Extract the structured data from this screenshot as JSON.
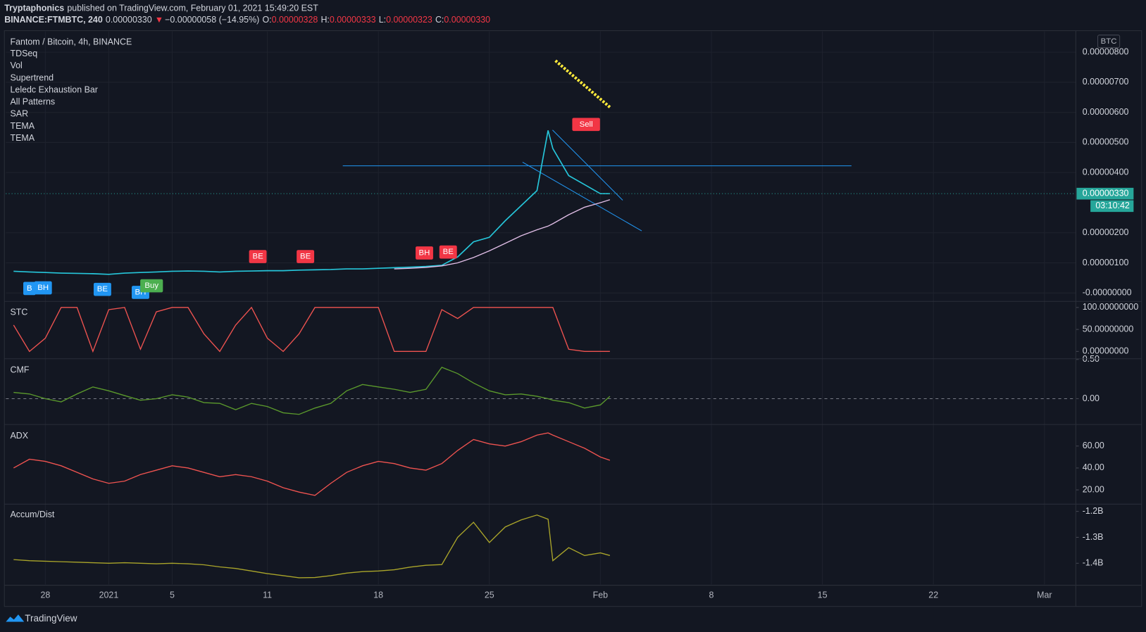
{
  "header": {
    "author": "Tryptaphonics",
    "published": "published on TradingView.com, February 01, 2021 15:49:20 EST",
    "symbol": "BINANCE:FTMBTC, 240",
    "last": "0.00000330",
    "arrow": "▼",
    "change": "−0.00000058 (−14.95%)",
    "ohlc": [
      {
        "label": "O:",
        "value": "0.00000328"
      },
      {
        "label": "H:",
        "value": "0.00000333"
      },
      {
        "label": "L:",
        "value": "0.00000323"
      },
      {
        "label": "C:",
        "value": "0.00000330"
      }
    ]
  },
  "footer": {
    "brand": "TradingView"
  },
  "chart_data": [
    {
      "type": "line",
      "title": "Fantom / Bitcoin, 4h, BINANCE",
      "indicators": [
        "TDSeq",
        "Vol",
        "Supertrend",
        "Leledc Exhaustion Bar",
        "All Patterns",
        "SAR",
        "TEMA",
        "TEMA"
      ],
      "currency": "BTC",
      "grid": true,
      "ylim": [
        -2.67e-07,
        8.69e-06
      ],
      "yticks": [
        {
          "value": 8e-06,
          "label": "0.00000800"
        },
        {
          "value": 7e-06,
          "label": "0.00000700"
        },
        {
          "value": 6e-06,
          "label": "0.00000600"
        },
        {
          "value": 5e-06,
          "label": "0.00000500"
        },
        {
          "value": 4e-06,
          "label": "0.00000400"
        },
        {
          "value": 2e-06,
          "label": "0.00000200"
        },
        {
          "value": 1e-06,
          "label": "0.00000100"
        },
        {
          "value": 0,
          "label": "-0.00000000"
        }
      ],
      "last_price": {
        "value": 3.3e-06,
        "label": "0.00000330"
      },
      "countdown": "03:10:42",
      "x": [
        -2,
        -1,
        0,
        1,
        2,
        3,
        4,
        5,
        6,
        7,
        8,
        9,
        10,
        11,
        12,
        13,
        14,
        15,
        16,
        17,
        18,
        19,
        20,
        21,
        22,
        23,
        24,
        25,
        26,
        27,
        28,
        29,
        30,
        31,
        31.7,
        32,
        33,
        34,
        35,
        35.6
      ],
      "series": [
        {
          "color": "#26c6da",
          "values": [
            7.2e-07,
            7e-07,
            6.8e-07,
            6.6e-07,
            6.5e-07,
            6.4e-07,
            6.2e-07,
            6.6e-07,
            6.8e-07,
            7e-07,
            7.2e-07,
            7.3e-07,
            7.2e-07,
            7e-07,
            7.2e-07,
            7.3e-07,
            7.4e-07,
            7.4e-07,
            7.6e-07,
            7.7e-07,
            7.8e-07,
            8e-07,
            8e-07,
            8.2e-07,
            8.4e-07,
            8.6e-07,
            8.8e-07,
            9.2e-07,
            1.2e-06,
            1.7e-06,
            1.85e-06,
            2.4e-06,
            2.9e-06,
            3.4e-06,
            5.4e-06,
            4.8e-06,
            3.9e-06,
            3.6e-06,
            3.3e-06,
            3.3e-06
          ]
        },
        {
          "color": "#e1bee7",
          "values": [
            null,
            null,
            null,
            null,
            null,
            null,
            null,
            null,
            null,
            null,
            null,
            null,
            null,
            null,
            null,
            null,
            null,
            null,
            null,
            null,
            null,
            null,
            null,
            null,
            8e-07,
            8.2e-07,
            8.5e-07,
            9e-07,
            1e-06,
            1.18e-06,
            1.4e-06,
            1.65e-06,
            1.9e-06,
            2.1e-06,
            2.22e-06,
            2.3e-06,
            2.6e-06,
            2.85e-06,
            3e-06,
            3.1e-06
          ]
        }
      ],
      "markers": [
        {
          "text": "B",
          "x": -1,
          "y": 1.5e-07,
          "color": "#2196f3"
        },
        {
          "text": "BH",
          "x": -0.14,
          "y": 1.7e-07,
          "color": "#2196f3"
        },
        {
          "text": "BE",
          "x": 3.6,
          "y": 1.2e-07,
          "color": "#2196f3"
        },
        {
          "text": "BH",
          "x": 6,
          "y": 2e-08,
          "color": "#2196f3"
        },
        {
          "text": "Buy",
          "x": 6.7,
          "y": 2.4e-07,
          "color": "#4caf50"
        },
        {
          "text": "BE",
          "x": 13.4,
          "y": 1.21e-06,
          "color": "#f23645"
        },
        {
          "text": "BE",
          "x": 16.4,
          "y": 1.21e-06,
          "color": "#f23645"
        },
        {
          "text": "BH",
          "x": 23.9,
          "y": 1.33e-06,
          "color": "#f23645"
        },
        {
          "text": "BE",
          "x": 25.4,
          "y": 1.36e-06,
          "color": "#f23645"
        },
        {
          "text": "Sell",
          "x": 34.1,
          "y": 5.6e-06,
          "color": "#f23645"
        }
      ]
    },
    {
      "type": "line",
      "title": "STC",
      "ylim": [
        -15,
        113
      ],
      "yticks": [
        {
          "value": 100,
          "label": "100.00000000"
        },
        {
          "value": 50,
          "label": "50.00000000"
        },
        {
          "value": 0,
          "label": "0.00000000"
        }
      ],
      "x": [
        -2,
        -1,
        0,
        1,
        2,
        3,
        4,
        5,
        6,
        7,
        8,
        9,
        10,
        11,
        12,
        13,
        14,
        15,
        16,
        17,
        18,
        19,
        20,
        21,
        22,
        23,
        24,
        25,
        26,
        27,
        28,
        29,
        30,
        31,
        31.7,
        32,
        33,
        34,
        35,
        35.6
      ],
      "series": [
        {
          "color": "#ef5350",
          "values": [
            60,
            0,
            30,
            100,
            100,
            0,
            95,
            100,
            5,
            90,
            100,
            100,
            40,
            0,
            60,
            100,
            30,
            0,
            40,
            100,
            100,
            100,
            100,
            100,
            0,
            0,
            0,
            95,
            75,
            100,
            100,
            100,
            100,
            100,
            100,
            100,
            5,
            0,
            0,
            0
          ]
        }
      ]
    },
    {
      "type": "line",
      "title": "CMF",
      "zero_line": true,
      "ylim": [
        -0.32,
        0.5
      ],
      "yticks": [
        {
          "value": 0.5,
          "label": "0.50"
        },
        {
          "value": 0,
          "label": "0.00"
        }
      ],
      "x": [
        -2,
        -1,
        0,
        1,
        2,
        3,
        4,
        5,
        6,
        7,
        8,
        9,
        10,
        11,
        12,
        13,
        14,
        15,
        16,
        17,
        18,
        19,
        20,
        21,
        22,
        23,
        24,
        25,
        26,
        27,
        28,
        29,
        30,
        31,
        31.7,
        32,
        33,
        34,
        35,
        35.6
      ],
      "series": [
        {
          "color": "#5b9a2c",
          "values": [
            0.08,
            0.06,
            0,
            -0.04,
            0.06,
            0.15,
            0.1,
            0.04,
            -0.02,
            0,
            0.05,
            0.02,
            -0.05,
            -0.06,
            -0.14,
            -0.06,
            -0.1,
            -0.18,
            -0.2,
            -0.12,
            -0.06,
            0.1,
            0.18,
            0.15,
            0.12,
            0.08,
            0.12,
            0.4,
            0.32,
            0.2,
            0.1,
            0.05,
            0.06,
            0.03,
            0,
            -0.02,
            -0.05,
            -0.12,
            -0.08,
            0.03
          ]
        }
      ]
    },
    {
      "type": "line",
      "title": "ADX",
      "ylim": [
        7,
        79
      ],
      "yticks": [
        {
          "value": 60,
          "label": "60.00"
        },
        {
          "value": 40,
          "label": "40.00"
        },
        {
          "value": 20,
          "label": "20.00"
        }
      ],
      "x": [
        -2,
        -1,
        0,
        1,
        2,
        3,
        4,
        5,
        6,
        7,
        8,
        9,
        10,
        11,
        12,
        13,
        14,
        15,
        16,
        17,
        18,
        19,
        20,
        21,
        22,
        23,
        24,
        25,
        26,
        27,
        28,
        29,
        30,
        31,
        31.7,
        32,
        33,
        34,
        35,
        35.6
      ],
      "series": [
        {
          "color": "#ef5350",
          "values": [
            40,
            48,
            46,
            42,
            36,
            30,
            26,
            28,
            34,
            38,
            42,
            40,
            36,
            32,
            34,
            32,
            28,
            22,
            18,
            15,
            26,
            36,
            42,
            46,
            44,
            40,
            38,
            44,
            56,
            66,
            62,
            60,
            64,
            70,
            72,
            70,
            64,
            58,
            50,
            47
          ]
        }
      ]
    },
    {
      "type": "line",
      "title": "Accum/Dist",
      "ylim": [
        -1482000000,
        -1172000000
      ],
      "yticks": [
        {
          "value": -1200000000,
          "label": "-1.2B"
        },
        {
          "value": -1300000000,
          "label": "-1.3B"
        },
        {
          "value": -1400000000,
          "label": "-1.4B"
        }
      ],
      "xlim": [
        -2.49,
        64.98
      ],
      "xticks": [
        {
          "value": 0,
          "label": "28"
        },
        {
          "value": 4,
          "label": "2021"
        },
        {
          "value": 8,
          "label": "5"
        },
        {
          "value": 14,
          "label": "11"
        },
        {
          "value": 21,
          "label": "18"
        },
        {
          "value": 28,
          "label": "25"
        },
        {
          "value": 35,
          "label": "Feb"
        },
        {
          "value": 42,
          "label": "8"
        },
        {
          "value": 49,
          "label": "15"
        },
        {
          "value": 56,
          "label": "22"
        },
        {
          "value": 63,
          "label": "Mar"
        }
      ],
      "x": [
        -2,
        -1,
        0,
        1,
        2,
        3,
        4,
        5,
        6,
        7,
        8,
        9,
        10,
        11,
        12,
        13,
        14,
        15,
        16,
        17,
        18,
        19,
        20,
        21,
        22,
        23,
        24,
        25,
        26,
        27,
        28,
        29,
        30,
        31,
        31.7,
        32,
        33,
        34,
        35,
        35.6
      ],
      "series": [
        {
          "color": "#aaa52a",
          "values": [
            -1386000000,
            -1390000000,
            -1392000000,
            -1394000000,
            -1396000000,
            -1398000000,
            -1400000000,
            -1398000000,
            -1400000000,
            -1402000000,
            -1400000000,
            -1402000000,
            -1406000000,
            -1414000000,
            -1420000000,
            -1430000000,
            -1440000000,
            -1448000000,
            -1456000000,
            -1455000000,
            -1448000000,
            -1438000000,
            -1432000000,
            -1430000000,
            -1425000000,
            -1415000000,
            -1408000000,
            -1405000000,
            -1300000000,
            -1242000000,
            -1320000000,
            -1260000000,
            -1233000000,
            -1214000000,
            -1230000000,
            -1390000000,
            -1340000000,
            -1370000000,
            -1360000000,
            -1370000000
          ]
        }
      ]
    }
  ]
}
